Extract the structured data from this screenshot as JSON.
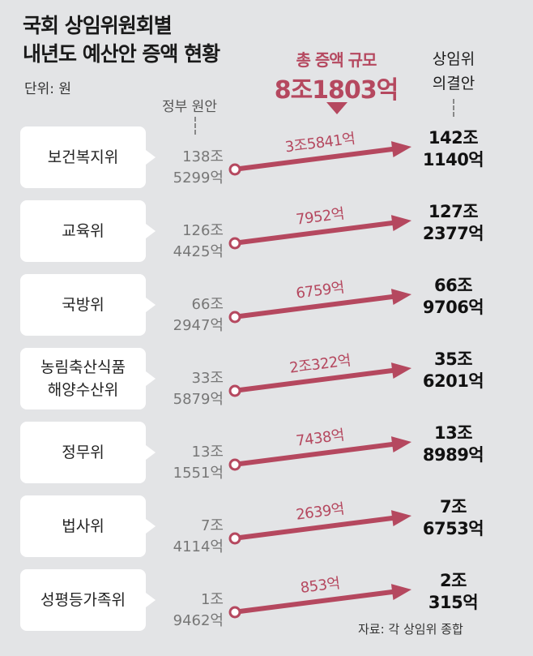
{
  "title_line1": "국회 상임위원회별",
  "title_line2": "내년도 예산안 증액 현황",
  "unit": "단위: 원",
  "header_government": "정부 원안",
  "header_total_label": "총 증액 규모",
  "header_total_value": "8조1803억",
  "header_committee_line1": "상임위",
  "header_committee_line2": "의결안",
  "source": "자료: 각 상임위 종합",
  "colors": {
    "accent": "#b5485f",
    "background": "#e3e4e6"
  },
  "chart_data": {
    "type": "table",
    "rows": [
      {
        "committee": [
          "보건복지위"
        ],
        "government": [
          "138조",
          "5299억"
        ],
        "increase": "3조5841억",
        "committee_result": [
          "142조",
          "1140억"
        ]
      },
      {
        "committee": [
          "교육위"
        ],
        "government": [
          "126조",
          "4425억"
        ],
        "increase": "7952억",
        "committee_result": [
          "127조",
          "2377억"
        ]
      },
      {
        "committee": [
          "국방위"
        ],
        "government": [
          "66조",
          "2947억"
        ],
        "increase": "6759억",
        "committee_result": [
          "66조",
          "9706억"
        ]
      },
      {
        "committee": [
          "농림축산식품",
          "해양수산위"
        ],
        "government": [
          "33조",
          "5879억"
        ],
        "increase": "2조322억",
        "committee_result": [
          "35조",
          "6201억"
        ]
      },
      {
        "committee": [
          "정무위"
        ],
        "government": [
          "13조",
          "1551억"
        ],
        "increase": "7438억",
        "committee_result": [
          "13조",
          "8989억"
        ]
      },
      {
        "committee": [
          "법사위"
        ],
        "government": [
          "7조",
          "4114억"
        ],
        "increase": "2639억",
        "committee_result": [
          "7조",
          "6753억"
        ]
      },
      {
        "committee": [
          "성평등가족위"
        ],
        "government": [
          "1조",
          "9462억"
        ],
        "increase": "853억",
        "committee_result": [
          "2조",
          "315억"
        ]
      }
    ]
  }
}
